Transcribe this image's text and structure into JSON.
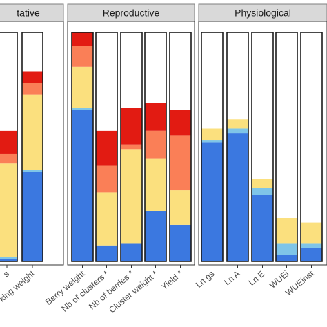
{
  "chart_data": {
    "type": "bar",
    "stacked": true,
    "normalized": true,
    "ylim": [
      0,
      1
    ],
    "grid": false,
    "legend": "none",
    "colors": {
      "blue": "#3b78e0",
      "lightblue": "#7fc5e8",
      "yellow": "#fbe07e",
      "orange": "#fa7f57",
      "red": "#e21b12",
      "white": "#ffffff",
      "strip": "#d9d9d9",
      "border": "#1a1a1a"
    },
    "stack_order": [
      "blue",
      "lightblue",
      "yellow",
      "orange",
      "red",
      "white"
    ],
    "panels": [
      {
        "strip": "tative",
        "bars": [
          {
            "label": "s",
            "segments": [
              0.01,
              0.01,
              0.41,
              0.04,
              0.1,
              0.43
            ]
          },
          {
            "label": "king weight",
            "segments": [
              0.39,
              0.01,
              0.33,
              0.05,
              0.05,
              0.17
            ]
          }
        ]
      },
      {
        "strip": "Reproductive",
        "bars": [
          {
            "label": "Berry weight",
            "segments": [
              0.66,
              0.01,
              0.18,
              0.09,
              0.06,
              0.0
            ]
          },
          {
            "label": "Nb of clusters *",
            "segments": [
              0.07,
              0.0,
              0.23,
              0.12,
              0.15,
              0.43
            ]
          },
          {
            "label": "Nb of berries *",
            "segments": [
              0.08,
              0.0,
              0.41,
              0.02,
              0.16,
              0.33
            ]
          },
          {
            "label": "Cluster weight *",
            "segments": [
              0.22,
              0.0,
              0.23,
              0.12,
              0.12,
              0.31
            ]
          },
          {
            "label": "Yield *",
            "segments": [
              0.16,
              0.0,
              0.15,
              0.24,
              0.11,
              0.34
            ]
          }
        ]
      },
      {
        "strip": "Physiological",
        "bars": [
          {
            "label": "Ln gs",
            "segments": [
              0.52,
              0.01,
              0.05,
              0.0,
              0.0,
              0.42
            ]
          },
          {
            "label": "Ln A",
            "segments": [
              0.56,
              0.02,
              0.04,
              0.0,
              0.0,
              0.38
            ]
          },
          {
            "label": "Ln E",
            "segments": [
              0.29,
              0.03,
              0.04,
              0.0,
              0.0,
              0.64
            ]
          },
          {
            "label": "WUEi",
            "segments": [
              0.03,
              0.05,
              0.11,
              0.0,
              0.0,
              0.81
            ]
          },
          {
            "label": "WUEinst",
            "segments": [
              0.06,
              0.02,
              0.09,
              0.0,
              0.0,
              0.83
            ]
          }
        ]
      }
    ]
  }
}
